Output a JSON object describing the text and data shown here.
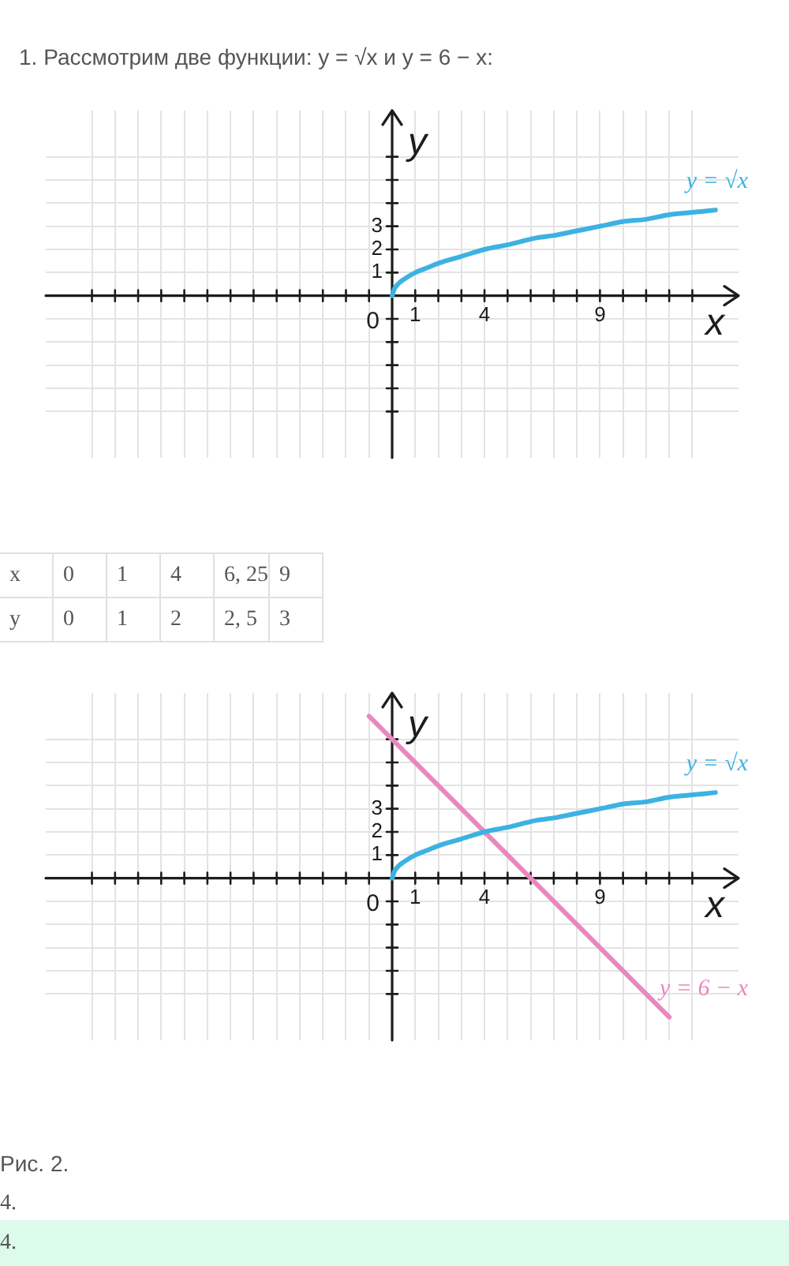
{
  "chart_data": [
    {
      "type": "line",
      "title": "1. Рассмотрим две функции: y = √x и y = 6 − x:",
      "xlabel": "x",
      "ylabel": "y",
      "xlim": [
        -15,
        15
      ],
      "ylim": [
        -7,
        8
      ],
      "xticks": [
        {
          "value": -13,
          "label": null
        },
        {
          "value": -12,
          "label": null
        },
        {
          "value": -11,
          "label": null
        },
        {
          "value": -10,
          "label": null
        },
        {
          "value": -9,
          "label": null
        },
        {
          "value": -8,
          "label": null
        },
        {
          "value": -7,
          "label": null
        },
        {
          "value": -6,
          "label": null
        },
        {
          "value": -5,
          "label": null
        },
        {
          "value": -4,
          "label": null
        },
        {
          "value": -3,
          "label": null
        },
        {
          "value": -2,
          "label": null
        },
        {
          "value": -1,
          "label": null
        },
        1,
        {
          "value": 2,
          "label": null
        },
        {
          "value": 3,
          "label": null
        },
        4,
        {
          "value": 5,
          "label": null
        },
        {
          "value": 6,
          "label": null
        },
        {
          "value": 7,
          "label": null
        },
        {
          "value": 8,
          "label": null
        },
        9,
        {
          "value": 10,
          "label": null
        },
        {
          "value": 11,
          "label": null
        },
        {
          "value": 12,
          "label": null
        },
        {
          "value": 13,
          "label": null
        }
      ],
      "yticks": [
        {
          "value": -5,
          "label": null
        },
        {
          "value": -4,
          "label": null
        },
        {
          "value": -3,
          "label": null
        },
        {
          "value": -2,
          "label": null
        },
        {
          "value": -1,
          "label": null
        },
        1,
        2,
        3,
        {
          "value": 4,
          "label": null
        },
        {
          "value": 5,
          "label": null
        },
        {
          "value": 6,
          "label": null
        }
      ],
      "grid": true,
      "series": [
        {
          "name": "y = √x",
          "color": "#3db2e2",
          "x": [
            0,
            0.1,
            0.25,
            0.5,
            1,
            1.5,
            2,
            3,
            4,
            5,
            6.25,
            7,
            8,
            9,
            10,
            11,
            12,
            13,
            14
          ],
          "values": [
            0,
            0.3,
            0.5,
            0.7,
            1,
            1.2,
            1.4,
            1.7,
            2,
            2.2,
            2.5,
            2.6,
            2.8,
            3,
            3.2,
            3.3,
            3.5,
            3.6,
            3.7
          ]
        }
      ],
      "annotations": [
        {
          "text": "0",
          "x": 0,
          "y": 0
        }
      ]
    },
    {
      "type": "other",
      "annotations": [
        "x",
        "0",
        "1",
        "4",
        "6, 25",
        "9",
        "y",
        "0",
        "1",
        "2",
        "2, 5",
        "3"
      ]
    },
    {
      "type": "line",
      "xlabel": "x",
      "ylabel": "y",
      "xlim": [
        -15,
        15
      ],
      "ylim": [
        -7,
        8
      ],
      "xticks": [
        {
          "value": -13,
          "label": null
        },
        {
          "value": -12,
          "label": null
        },
        {
          "value": -11,
          "label": null
        },
        {
          "value": -10,
          "label": null
        },
        {
          "value": -9,
          "label": null
        },
        {
          "value": -8,
          "label": null
        },
        {
          "value": -7,
          "label": null
        },
        {
          "value": -6,
          "label": null
        },
        {
          "value": -5,
          "label": null
        },
        {
          "value": -4,
          "label": null
        },
        {
          "value": -3,
          "label": null
        },
        {
          "value": -2,
          "label": null
        },
        {
          "value": -1,
          "label": null
        },
        1,
        {
          "value": 2,
          "label": null
        },
        {
          "value": 3,
          "label": null
        },
        4,
        {
          "value": 5,
          "label": null
        },
        {
          "value": 6,
          "label": null
        },
        {
          "value": 7,
          "label": null
        },
        {
          "value": 8,
          "label": null
        },
        9,
        {
          "value": 10,
          "label": null
        },
        {
          "value": 11,
          "label": null
        },
        {
          "value": 12,
          "label": null
        },
        {
          "value": 13,
          "label": null
        }
      ],
      "yticks": [
        {
          "value": -5,
          "label": null
        },
        {
          "value": -4,
          "label": null
        },
        {
          "value": -3,
          "label": null
        },
        {
          "value": -2,
          "label": null
        },
        {
          "value": -1,
          "label": null
        },
        1,
        2,
        3,
        {
          "value": 4,
          "label": null
        },
        {
          "value": 5,
          "label": null
        },
        {
          "value": 6,
          "label": null
        }
      ],
      "grid": true,
      "series": [
        {
          "name": "y = √x",
          "color": "#3db2e2",
          "x": [
            0,
            0.1,
            0.25,
            0.5,
            1,
            1.5,
            2,
            3,
            4,
            5,
            6.25,
            7,
            8,
            9,
            10,
            11,
            12,
            13,
            14
          ],
          "values": [
            0,
            0.3,
            0.5,
            0.7,
            1,
            1.2,
            1.4,
            1.7,
            2,
            2.2,
            2.5,
            2.6,
            2.8,
            3,
            3.2,
            3.3,
            3.5,
            3.6,
            3.7
          ]
        },
        {
          "name": "y = 6 − x",
          "color": "#e889bb",
          "x": [
            -1,
            12
          ],
          "values": [
            7,
            -6
          ]
        }
      ],
      "annotations": [
        {
          "text": "0",
          "x": 0,
          "y": 0
        },
        "Рис. 2.",
        "4.",
        "4."
      ]
    }
  ]
}
